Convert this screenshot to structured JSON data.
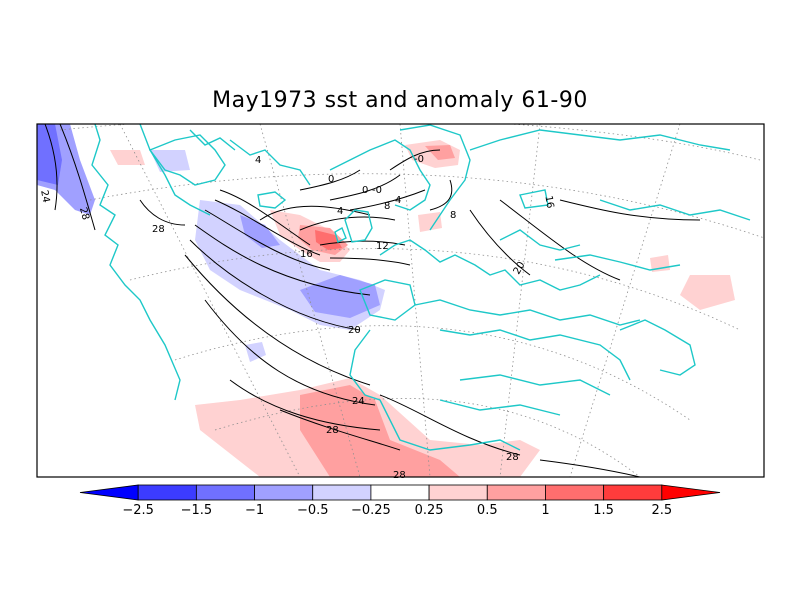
{
  "title": "May1973 sst and anomaly 61-90",
  "colorbar": {
    "ticks": [
      "−2.5",
      "−1.5",
      "−1",
      "−0.5",
      "−0.25",
      "0.25",
      "0.5",
      "1",
      "1.5",
      "2.5"
    ],
    "colors": [
      "#0000ff",
      "#3c3cff",
      "#7070ff",
      "#a0a0ff",
      "#d2d2ff",
      "#ffffff",
      "#ffd2d2",
      "#ffa0a0",
      "#ff6e6e",
      "#ff3c3c",
      "#ff0000"
    ]
  },
  "contour_labels": [
    "24",
    "28",
    "28",
    "4",
    "0",
    "0",
    "-0",
    "4",
    "4",
    "8",
    "12",
    "16",
    "20",
    "24",
    "28",
    "28",
    "28",
    "20",
    "16",
    "8",
    "-0"
  ],
  "colors": {
    "coast": "#1ec8c8",
    "contour": "#000000",
    "grid": "#909090"
  }
}
